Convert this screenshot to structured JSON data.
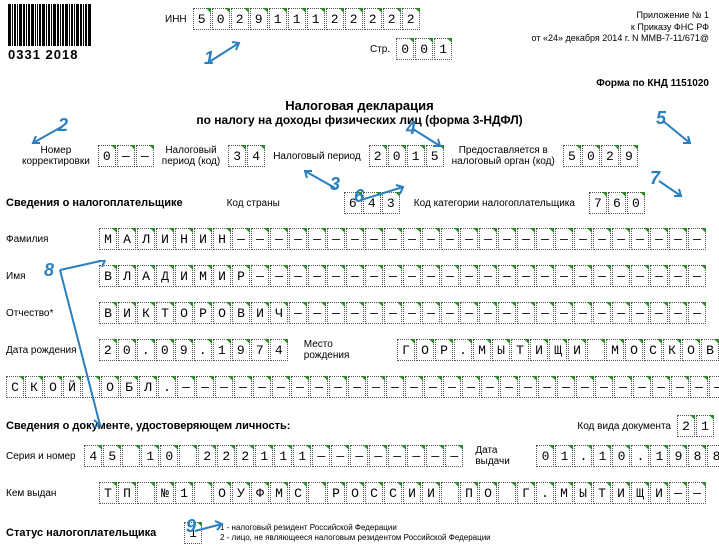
{
  "barcode_text": "0331 2018",
  "header": {
    "inn_label": "ИНН",
    "inn": [
      "5",
      "0",
      "2",
      "9",
      "1",
      "1",
      "1",
      "2",
      "2",
      "2",
      "2",
      "2"
    ],
    "page_label": "Стр.",
    "page": [
      "0",
      "0",
      "1"
    ],
    "app_line1": "Приложение № 1",
    "app_line2": "к Приказу ФНС РФ",
    "app_line3": "от «24» декабря 2014 г. N ММВ-7-11/671@",
    "knd": "Форма по КНД 1151020"
  },
  "title": "Налоговая декларация",
  "subtitle": "по налогу на доходы физических лиц (форма 3-НДФЛ)",
  "row1": {
    "corr_label": "Номер\nкорректировки",
    "corr": [
      "0",
      "—",
      "—"
    ],
    "period_code_label": "Налоговый\nпериод (код)",
    "period_code": [
      "3",
      "4"
    ],
    "period_label": "Налоговый период",
    "period": [
      "2",
      "0",
      "1",
      "5"
    ],
    "authority_label": "Предоставляется в\nналоговый орган (код)",
    "authority": [
      "5",
      "0",
      "2",
      "9"
    ]
  },
  "row2": {
    "section_label": "Сведения о налогоплательщике",
    "country_label": "Код страны",
    "country": [
      "6",
      "4",
      "3"
    ],
    "category_label": "Код категории налогоплательщика",
    "category": [
      "7",
      "6",
      "0"
    ]
  },
  "person": {
    "surname_label": "Фамилия",
    "surname": [
      "М",
      "А",
      "Л",
      "И",
      "Н",
      "И",
      "Н",
      "—",
      "—",
      "—",
      "—",
      "—",
      "—",
      "—",
      "—",
      "—",
      "—",
      "—",
      "—",
      "—",
      "—",
      "—",
      "—",
      "—",
      "—",
      "—",
      "—",
      "—",
      "—",
      "—",
      "—",
      "—"
    ],
    "name_label": "Имя",
    "name": [
      "В",
      "Л",
      "А",
      "Д",
      "И",
      "М",
      "И",
      "Р",
      "—",
      "—",
      "—",
      "—",
      "—",
      "—",
      "—",
      "—",
      "—",
      "—",
      "—",
      "—",
      "—",
      "—",
      "—",
      "—",
      "—",
      "—",
      "—",
      "—",
      "—",
      "—",
      "—",
      "—"
    ],
    "patronymic_label": "Отчество*",
    "patronymic": [
      "В",
      "И",
      "К",
      "Т",
      "О",
      "Р",
      "О",
      "В",
      "И",
      "Ч",
      "—",
      "—",
      "—",
      "—",
      "—",
      "—",
      "—",
      "—",
      "—",
      "—",
      "—",
      "—",
      "—",
      "—",
      "—",
      "—",
      "—",
      "—",
      "—",
      "—",
      "—",
      "—"
    ],
    "dob_label": "Дата рождения",
    "dob": [
      "2",
      "0",
      ".",
      "0",
      "9",
      ".",
      "1",
      "9",
      "7",
      "4"
    ],
    "pob_label": "Место рождения",
    "pob_line1": [
      "Г",
      "О",
      "Р",
      ".",
      "М",
      "Ы",
      "Т",
      "И",
      "Щ",
      "И",
      " ",
      "М",
      "О",
      "С",
      "К",
      "О",
      "В"
    ],
    "pob_line2": [
      "С",
      "К",
      "О",
      "Й",
      " ",
      "О",
      "Б",
      "Л",
      ".",
      "—",
      "—",
      "—",
      "—",
      "—",
      "—",
      "—",
      "—",
      "—",
      "—",
      "—",
      "—",
      "—",
      "—",
      "—",
      "—",
      "—",
      "—",
      "—",
      "—",
      "—",
      "—",
      "—",
      "—",
      "—",
      "—",
      "—",
      "—",
      "—"
    ]
  },
  "doc": {
    "section_label": "Сведения о документе, удостоверяющем личность:",
    "doc_type_label": "Код вида документа",
    "doc_type": [
      "2",
      "1"
    ],
    "serial_label": "Серия и номер",
    "serial": [
      "4",
      "5",
      " ",
      "1",
      "0",
      " ",
      "2",
      "2",
      "2",
      "1",
      "1",
      "1",
      "—",
      "—",
      "—",
      "—",
      "—",
      "—",
      "—",
      "—"
    ],
    "issue_date_label": "Дата выдачи",
    "issue_date": [
      "0",
      "1",
      ".",
      "1",
      "0",
      ".",
      "1",
      "9",
      "8",
      "8"
    ],
    "issued_by_label": "Кем выдан",
    "issued_by": [
      "Т",
      "П",
      " ",
      "№",
      "1",
      " ",
      "О",
      "У",
      "Ф",
      "М",
      "С",
      " ",
      "Р",
      "О",
      "С",
      "С",
      "И",
      "И",
      " ",
      "П",
      "О",
      " ",
      "Г",
      ".",
      "М",
      "Ы",
      "Т",
      "И",
      "Щ",
      "И",
      "—",
      "—"
    ]
  },
  "status": {
    "label": "Статус налогоплательщика",
    "value": [
      "1"
    ],
    "note1": "1 - налоговый резидент Российской Федерации",
    "note2": "2 - лицо, не являющееся налоговым резидентом Российской Федерации"
  },
  "callouts": {
    "c1": "1",
    "c2": "2",
    "c3": "3",
    "c4": "4",
    "c5": "5",
    "c6": "6",
    "c7": "7",
    "c8": "8",
    "c9": "9"
  },
  "style": {
    "callout_color": "#2a7fbf",
    "cell_corner_color": "#2a8a2a"
  }
}
